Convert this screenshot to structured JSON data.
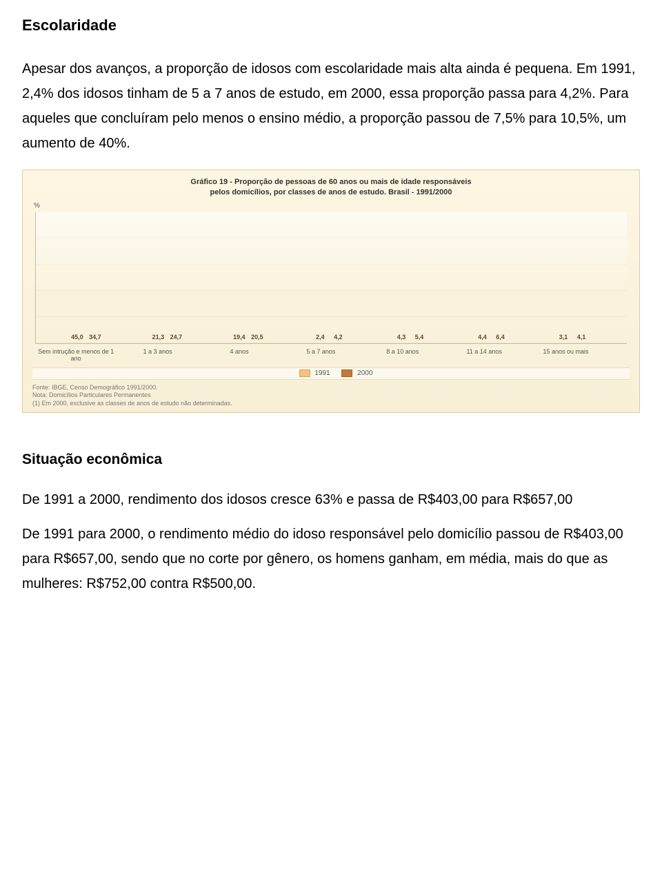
{
  "heading": "Escolaridade",
  "para1": "Apesar dos avanços, a proporção de idosos com escolaridade mais alta ainda é pequena. Em 1991, 2,4% dos idosos tinham de 5 a 7 anos de estudo, em 2000, essa proporção passa para 4,2%. Para aqueles que concluíram pelo menos o ensino médio, a proporção passou de 7,5% para 10,5%, um aumento de 40%.",
  "subheading": "Situação econômica",
  "para2": "De 1991 a 2000, rendimento dos idosos cresce 63% e passa de R$403,00 para R$657,00",
  "para3": "De 1991 para 2000, o rendimento médio do idoso responsável pelo domicílio passou de R$403,00 para R$657,00, sendo que no corte por gênero, os homens ganham, em média, mais do que as mulheres: R$752,00 contra R$500,00.",
  "chart": {
    "type": "bar",
    "title_line1": "Gráfico 19 - Proporção de pessoas de 60 anos ou mais de idade responsáveis",
    "title_line2": "pelos domicílios, por classes de anos de estudo. Brasil - 1991/2000",
    "ylabel": "%",
    "ylim_max": 50,
    "categories": [
      "Sem intrução e menos de 1 ano",
      "1 a 3 anos",
      "4 anos",
      "5 a 7 anos",
      "8 a 10 anos",
      "11 a 14 anos",
      "15 anos ou mais"
    ],
    "series": [
      {
        "name": "1991",
        "color": "#f4c27a",
        "values": [
          45.0,
          21.3,
          19.4,
          2.4,
          4.3,
          4.4,
          3.1
        ]
      },
      {
        "name": "2000",
        "color": "#c07a3a",
        "values": [
          34.7,
          24.7,
          20.5,
          4.2,
          5.4,
          6.4,
          4.1
        ]
      }
    ],
    "value_labels": [
      [
        "45,0",
        "34,7"
      ],
      [
        "21,3",
        "24,7"
      ],
      [
        "19,4",
        "20,5"
      ],
      [
        "2,4",
        "4,2"
      ],
      [
        "4,3",
        "5,4"
      ],
      [
        "4,4",
        "6,4"
      ],
      [
        "3,1",
        "4,1"
      ]
    ],
    "background_color": "#faf2dc",
    "grid_color": "#e7dfc4",
    "label_fontsize": 9,
    "title_fontsize": 11,
    "footer_line1": "Fonte: IBGE, Censo Demográfico 1991/2000.",
    "footer_line2": "Nota: Domicílios Particulares Permanentes",
    "footer_line3": "(1) Em 2000, exclusive as classes de anos de estudo não determinadas."
  }
}
